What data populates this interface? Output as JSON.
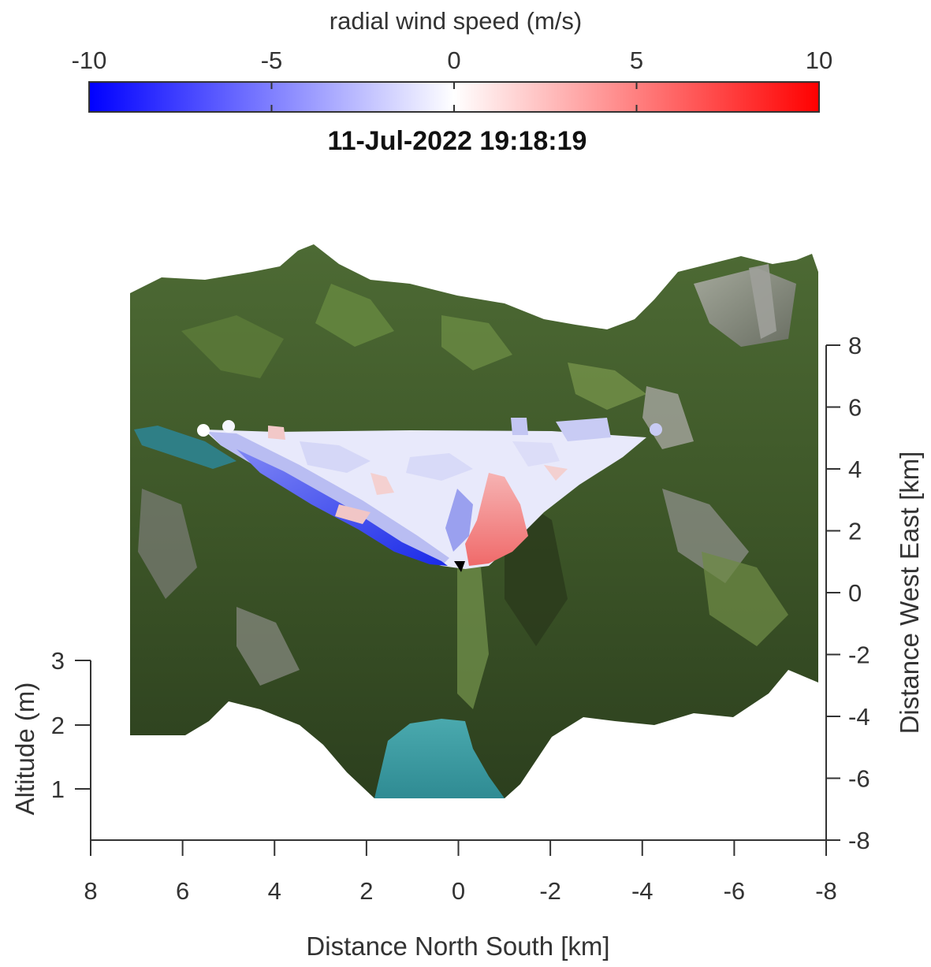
{
  "chart_data": {
    "type": "3d-surface-scan",
    "colorbar": {
      "label": "radial wind speed (m/s)",
      "ticks": [
        -10,
        -5,
        0,
        5,
        10
      ],
      "range": [
        -10,
        10
      ],
      "colors": {
        "low": "#0000ff",
        "mid": "#ffffff",
        "high": "#ff0000"
      },
      "position": "top"
    },
    "title": "11-Jul-2022 19:18:19",
    "x_axis": {
      "label": "Distance North South [km]",
      "ticks": [
        8,
        6,
        4,
        2,
        0,
        -2,
        -4,
        -6,
        -8
      ],
      "range": [
        8,
        -8
      ]
    },
    "y_axis": {
      "label": "Distance West East [km]",
      "ticks": [
        -8,
        -6,
        -4,
        -2,
        0,
        2,
        4,
        6,
        8
      ],
      "range": [
        -8,
        8
      ],
      "side": "right"
    },
    "z_axis": {
      "label": "Altitude (m)",
      "ticks": [
        1,
        2,
        3
      ],
      "side": "left"
    },
    "grid": false,
    "scan": {
      "sector": "fan from lidar toward northwest",
      "features": [
        {
          "region": "lower-left edge",
          "approx_speed": -9
        },
        {
          "region": "center-right near origin",
          "approx_speed": 8
        },
        {
          "region": "far field",
          "approx_speed": -1
        }
      ]
    },
    "terrain_colors": {
      "forest": "#3f5a2c",
      "meadow": "#6b8a42",
      "rock": "#8a8a86",
      "lake": "#3f9fa6"
    }
  }
}
